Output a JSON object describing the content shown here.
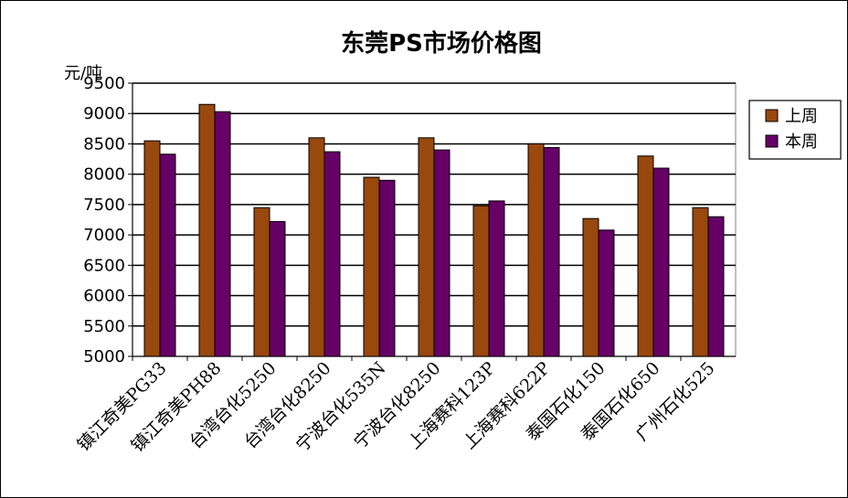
{
  "chart_data": {
    "type": "bar",
    "title": "东莞PS市场价格图",
    "ylabel": "元/吨",
    "xlabel": "",
    "ylim": [
      5000,
      9500
    ],
    "ytick_step": 500,
    "grid": true,
    "legend_position": "right",
    "categories": [
      "镇江奇美PG33",
      "镇江奇美PH88",
      "台湾台化5250",
      "台湾台化8250",
      "宁波台化535N",
      "宁波台化8250",
      "上海赛科123P",
      "上海赛科622P",
      "泰国石化150",
      "泰国石化650",
      "广州石化525"
    ],
    "series": [
      {
        "name": "上周",
        "color": "#99480e",
        "values": [
          8550,
          9150,
          7450,
          8600,
          7950,
          8600,
          7480,
          8500,
          7270,
          8300,
          7450
        ]
      },
      {
        "name": "本周",
        "color": "#660066",
        "values": [
          8330,
          9030,
          7220,
          8370,
          7900,
          8400,
          7560,
          8440,
          7080,
          8100,
          7300
        ]
      }
    ]
  }
}
